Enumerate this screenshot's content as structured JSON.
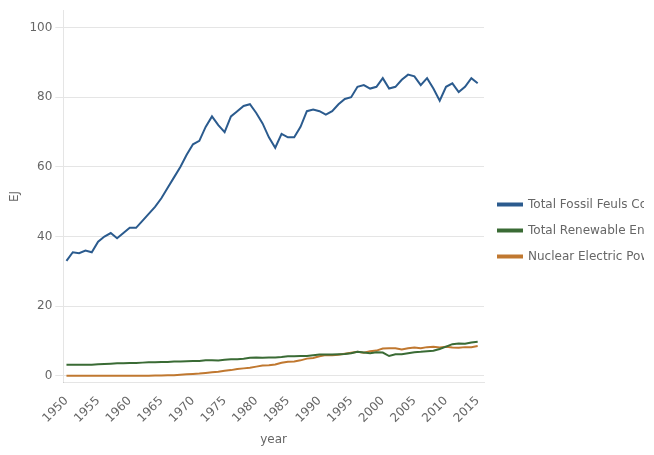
{
  "chart_data": {
    "type": "line",
    "xlabel": "year",
    "ylabel": "EJ",
    "x": [
      1950,
      1951,
      1952,
      1953,
      1954,
      1955,
      1956,
      1957,
      1958,
      1959,
      1960,
      1961,
      1962,
      1963,
      1964,
      1965,
      1966,
      1967,
      1968,
      1969,
      1970,
      1971,
      1972,
      1973,
      1974,
      1975,
      1976,
      1977,
      1978,
      1979,
      1980,
      1981,
      1982,
      1983,
      1984,
      1985,
      1986,
      1987,
      1988,
      1989,
      1990,
      1991,
      1992,
      1993,
      1994,
      1995,
      1996,
      1997,
      1998,
      1999,
      2000,
      2001,
      2002,
      2003,
      2004,
      2005,
      2006,
      2007,
      2008,
      2009,
      2010,
      2011,
      2012,
      2013,
      2014,
      2015
    ],
    "series": [
      {
        "name": "Total Fossil Feuls Consumption",
        "color": "#2b5b8e",
        "values": [
          33.0,
          35.5,
          35.2,
          36.0,
          35.5,
          38.5,
          40.0,
          41.0,
          39.5,
          41.0,
          42.5,
          42.5,
          44.5,
          46.5,
          48.5,
          51.0,
          54.0,
          57.0,
          60.0,
          63.5,
          66.5,
          67.5,
          71.5,
          74.5,
          72.0,
          70.0,
          74.5,
          76.0,
          77.5,
          78.0,
          75.5,
          72.5,
          68.5,
          65.5,
          69.5,
          68.5,
          68.5,
          71.5,
          76.0,
          76.5,
          76.0,
          75.0,
          76.0,
          78.0,
          79.5,
          80.0,
          83.0,
          83.5,
          82.5,
          83.0,
          85.5,
          82.5,
          83.0,
          85.0,
          86.5,
          86.0,
          83.5,
          85.5,
          82.5,
          79.0,
          83.0,
          84.0,
          81.5,
          83.0,
          85.5,
          84.0
        ]
      },
      {
        "name": "Total Renewable Energy Consumption",
        "color": "#3a6b35",
        "values": [
          3.2,
          3.2,
          3.2,
          3.2,
          3.2,
          3.3,
          3.4,
          3.5,
          3.6,
          3.6,
          3.7,
          3.7,
          3.8,
          3.9,
          3.9,
          4.0,
          4.0,
          4.1,
          4.1,
          4.2,
          4.3,
          4.3,
          4.5,
          4.5,
          4.4,
          4.6,
          4.8,
          4.8,
          4.9,
          5.2,
          5.3,
          5.2,
          5.3,
          5.3,
          5.4,
          5.6,
          5.6,
          5.7,
          5.7,
          5.9,
          6.1,
          6.1,
          6.1,
          6.2,
          6.3,
          6.5,
          6.9,
          6.7,
          6.5,
          6.8,
          6.7,
          5.7,
          6.2,
          6.2,
          6.5,
          6.8,
          6.9,
          7.1,
          7.2,
          7.7,
          8.4,
          9.1,
          9.3,
          9.2,
          9.6,
          9.8
        ]
      },
      {
        "name": "Nuclear Electric Power Consumption",
        "color": "#c07830",
        "values": [
          0.01,
          0.01,
          0.01,
          0.01,
          0.01,
          0.01,
          0.01,
          0.01,
          0.01,
          0.01,
          0.02,
          0.02,
          0.05,
          0.05,
          0.08,
          0.1,
          0.15,
          0.2,
          0.35,
          0.45,
          0.55,
          0.65,
          0.85,
          1.05,
          1.15,
          1.45,
          1.65,
          1.95,
          2.15,
          2.35,
          2.65,
          2.95,
          3.05,
          3.25,
          3.75,
          4.05,
          4.15,
          4.45,
          4.95,
          5.15,
          5.65,
          5.95,
          5.95,
          6.05,
          6.35,
          6.65,
          6.95,
          6.65,
          7.05,
          7.25,
          7.85,
          7.95,
          7.95,
          7.55,
          7.95,
          8.15,
          7.95,
          8.25,
          8.35,
          8.15,
          8.35,
          8.15,
          8.05,
          8.25,
          8.25,
          8.55
        ]
      }
    ],
    "xlim": [
      1949.5,
      2016
    ],
    "ylim": [
      -2,
      105
    ],
    "xticks": [
      1950,
      1955,
      1960,
      1965,
      1970,
      1975,
      1980,
      1985,
      1990,
      1995,
      2000,
      2005,
      2010,
      2015
    ],
    "yticks": [
      0,
      20,
      40,
      60,
      80,
      100
    ],
    "grid": "y",
    "legend": "right"
  }
}
